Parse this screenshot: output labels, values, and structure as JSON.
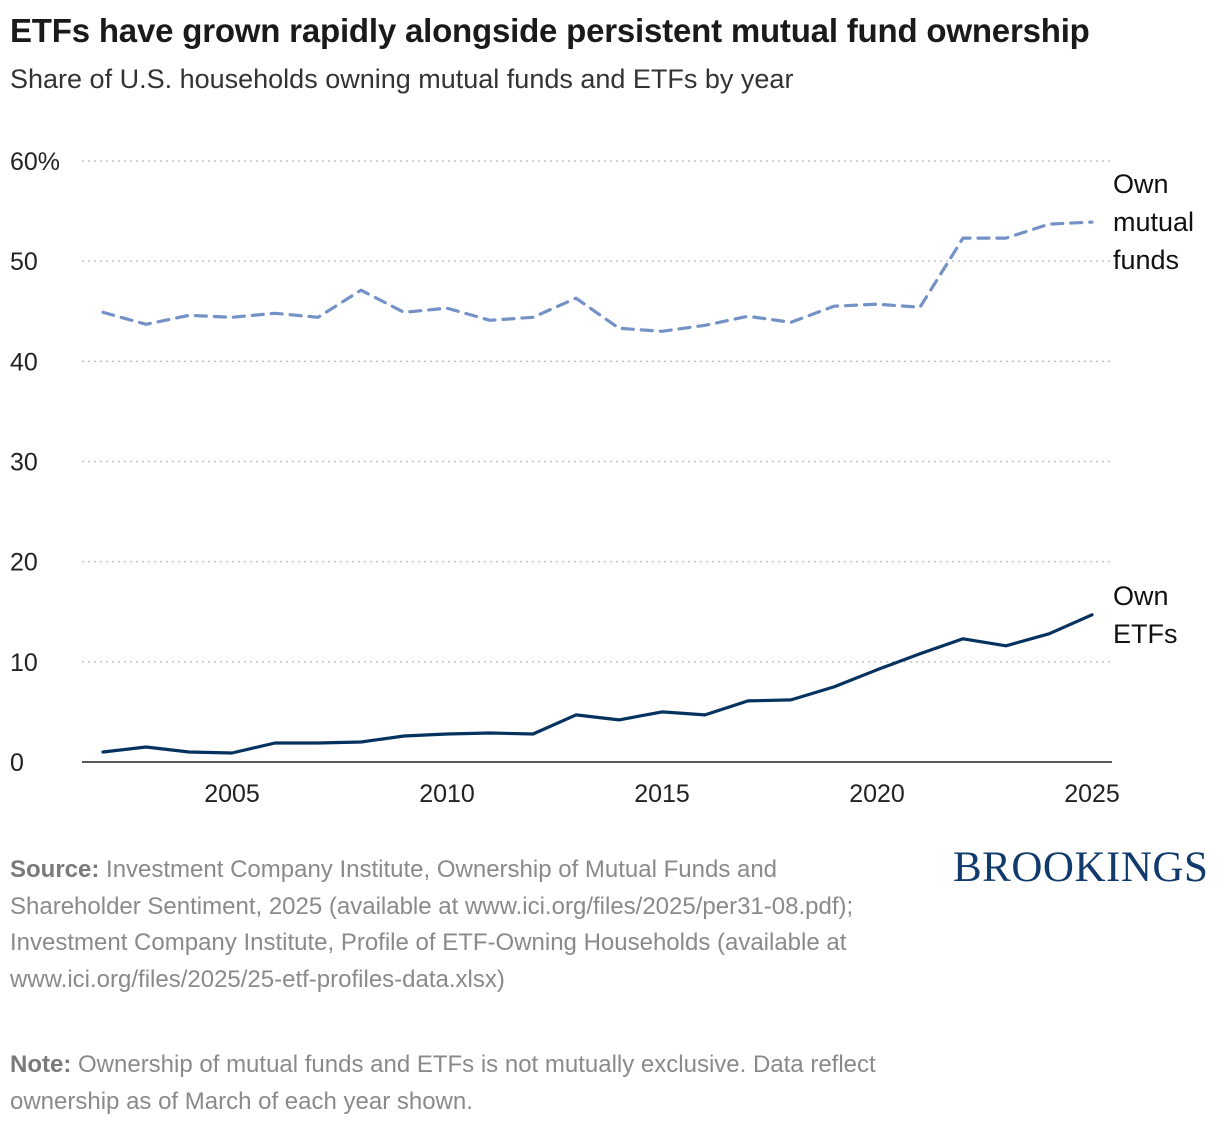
{
  "title": "ETFs have grown rapidly alongside persistent mutual fund ownership",
  "subtitle": "Share of U.S. households owning mutual funds and ETFs by year",
  "chart_data": {
    "type": "line",
    "ylim": [
      0,
      60
    ],
    "xlim": [
      2002,
      2025
    ],
    "y_ticks": [
      0,
      10,
      20,
      30,
      40,
      50,
      60
    ],
    "y_tick_labels": [
      "0",
      "10",
      "20",
      "30",
      "40",
      "50",
      "60%"
    ],
    "x_ticks": [
      2005,
      2010,
      2015,
      2020,
      2025
    ],
    "x_tick_labels": [
      "2005",
      "2010",
      "2015",
      "2020",
      "2025"
    ],
    "grid": "horizontal dotted",
    "x": [
      2002,
      2003,
      2004,
      2005,
      2006,
      2007,
      2008,
      2009,
      2010,
      2011,
      2012,
      2013,
      2014,
      2015,
      2016,
      2017,
      2018,
      2019,
      2020,
      2021,
      2022,
      2023,
      2024,
      2025
    ],
    "series": [
      {
        "name": "Own mutual funds",
        "label_lines": [
          "Own",
          "mutual",
          "funds"
        ],
        "color": "#7592c7",
        "style": "dashed",
        "values": [
          44.9,
          43.7,
          44.6,
          44.4,
          44.8,
          44.4,
          47.1,
          44.9,
          45.3,
          44.1,
          44.4,
          46.3,
          43.3,
          43.0,
          43.6,
          44.5,
          43.9,
          45.5,
          45.7,
          45.4,
          52.3,
          52.3,
          53.7,
          53.9
        ]
      },
      {
        "name": "Own ETFs",
        "label_lines": [
          "Own",
          "ETFs"
        ],
        "color": "#06325f",
        "style": "solid",
        "values": [
          1.0,
          1.5,
          1.0,
          0.9,
          1.9,
          1.9,
          2.0,
          2.6,
          2.8,
          2.9,
          2.8,
          4.7,
          4.2,
          5.0,
          4.7,
          6.1,
          6.2,
          7.5,
          9.2,
          10.8,
          12.3,
          11.6,
          12.8,
          14.7
        ]
      }
    ]
  },
  "source": {
    "label": "Source:",
    "text": " Investment Company Institute, Ownership of Mutual Funds and Shareholder Sentiment, 2025 (available at www.ici.org/files/2025/per31-08.pdf); Investment Company Institute, Profile of ETF-Owning Households (available at www.ici.org/files/2025/25-etf-profiles-data.xlsx)"
  },
  "note": {
    "label": "Note:",
    "text": " Ownership of mutual funds and ETFs is not mutually exclusive. Data reflect ownership as of March of each year shown."
  },
  "logo": "BROOKINGS"
}
